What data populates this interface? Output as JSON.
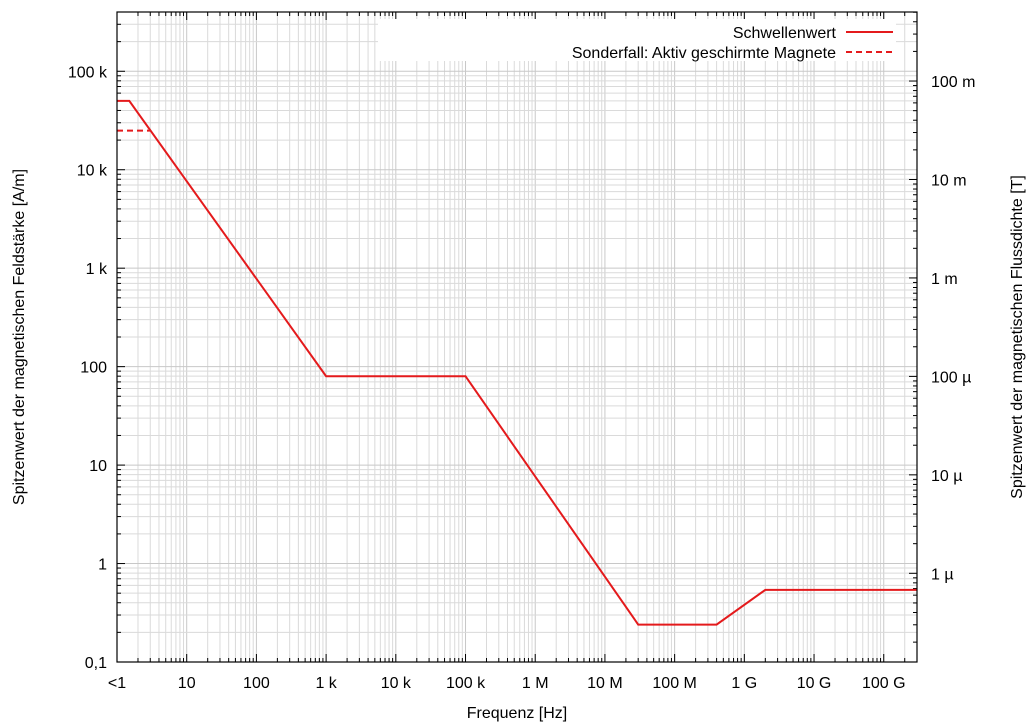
{
  "chart_data": {
    "type": "line",
    "title": "",
    "xlabel": "Frequenz [Hz]",
    "ylabel": "Spitzenwert der magnetischen Feldstärke [A/m]",
    "y2label": "Spitzenwert der magnetischen Flussdichte [T]",
    "xscale": "log",
    "yscale": "log",
    "xlim": [
      1,
      300000000000
    ],
    "ylim": [
      0.1,
      400000
    ],
    "grid": true,
    "legend_position": "top-right",
    "x_ticks": [
      {
        "value": 1,
        "label": "<1"
      },
      {
        "value": 10,
        "label": "10"
      },
      {
        "value": 100,
        "label": "100"
      },
      {
        "value": 1000,
        "label": "1 k"
      },
      {
        "value": 10000,
        "label": "10 k"
      },
      {
        "value": 100000,
        "label": "100 k"
      },
      {
        "value": 1000000,
        "label": "1 M"
      },
      {
        "value": 10000000,
        "label": "10 M"
      },
      {
        "value": 100000000,
        "label": "100 M"
      },
      {
        "value": 1000000000,
        "label": "1 G"
      },
      {
        "value": 10000000000,
        "label": "10 G"
      },
      {
        "value": 100000000000,
        "label": "100 G"
      }
    ],
    "y_ticks": [
      {
        "value": 0.1,
        "label": "0,1"
      },
      {
        "value": 1,
        "label": "1"
      },
      {
        "value": 10,
        "label": "10"
      },
      {
        "value": 100,
        "label": "100"
      },
      {
        "value": 1000,
        "label": "1 k"
      },
      {
        "value": 10000,
        "label": "10 k"
      },
      {
        "value": 100000,
        "label": "100 k"
      }
    ],
    "y2_ticks": [
      {
        "value": 1e-06,
        "label": "1 µ"
      },
      {
        "value": 1e-05,
        "label": "10 µ"
      },
      {
        "value": 0.0001,
        "label": "100 µ"
      },
      {
        "value": 0.001,
        "label": "1 m"
      },
      {
        "value": 0.01,
        "label": "10 m"
      },
      {
        "value": 0.1,
        "label": "100 m"
      }
    ],
    "y2_unit_factor_tesla_per_Apm": 1.2566e-06,
    "series": [
      {
        "name": "Schwellenwert",
        "color": "#e41a1c",
        "dash": "solid",
        "points": [
          {
            "x": 1,
            "y": 50000
          },
          {
            "x": 1.5,
            "y": 50000
          },
          {
            "x": 1000,
            "y": 80
          },
          {
            "x": 100000,
            "y": 80
          },
          {
            "x": 30000000,
            "y": 0.24
          },
          {
            "x": 400000000,
            "y": 0.24
          },
          {
            "x": 2000000000,
            "y": 0.54
          },
          {
            "x": 300000000000,
            "y": 0.54
          }
        ]
      },
      {
        "name": "Sonderfall: Aktiv geschirmte Magnete",
        "color": "#e41a1c",
        "dash": "dashed",
        "points": [
          {
            "x": 1,
            "y": 25000
          },
          {
            "x": 3,
            "y": 25000
          }
        ]
      }
    ]
  }
}
